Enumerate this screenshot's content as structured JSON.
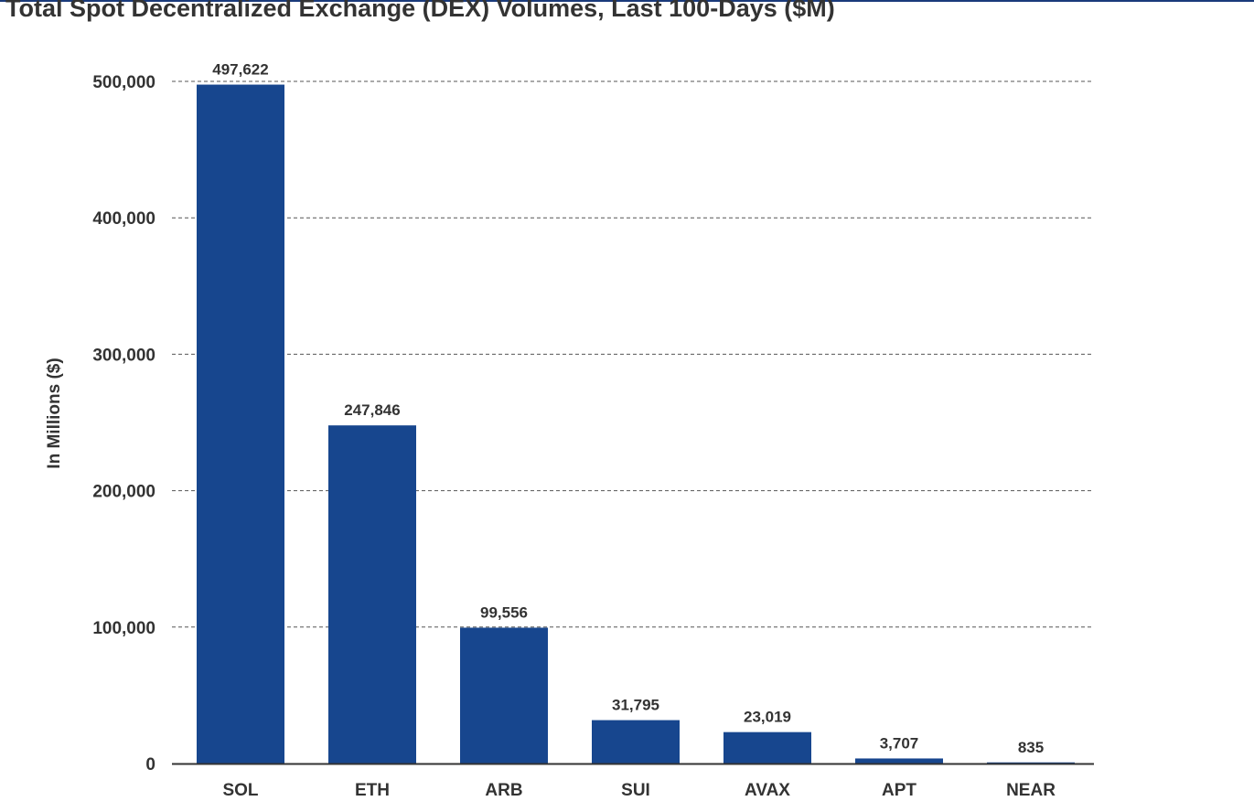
{
  "chart_data": {
    "type": "bar",
    "title": "Total Spot Decentralized Exchange (DEX) Volumes, Last 100-Days ($M)",
    "xlabel": "",
    "ylabel": "In Millions ($)",
    "categories": [
      "SOL",
      "ETH",
      "ARB",
      "SUI",
      "AVAX",
      "APT",
      "NEAR"
    ],
    "values": [
      497622,
      247846,
      99556,
      31795,
      23019,
      3707,
      835
    ],
    "value_labels": [
      "497,622",
      "247,846",
      "99,556",
      "31,795",
      "23,019",
      "3,707",
      "835"
    ],
    "yticks": [
      0,
      100000,
      200000,
      300000,
      400000,
      500000
    ],
    "ytick_labels": [
      "0",
      "100,000",
      "200,000",
      "300,000",
      "400,000",
      "500,000"
    ],
    "ylim": [
      0,
      500000
    ],
    "grid": true,
    "legend": "none"
  },
  "colors": {
    "bar": "#17468e",
    "grid": "#555555",
    "axis": "#333333",
    "title_rule": "#1a3a7a"
  }
}
